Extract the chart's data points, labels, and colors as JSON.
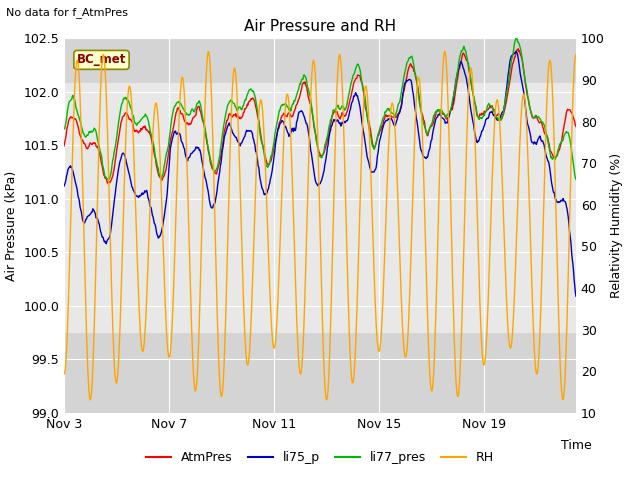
{
  "title": "Air Pressure and RH",
  "top_left_text": "No data for f_AtmPres",
  "xlabel": "Time",
  "ylabel_left": "Air Pressure (kPa)",
  "ylabel_right": "Relativity Humidity (%)",
  "bc_met_label": "BC_met",
  "ylim_left": [
    99.0,
    102.5
  ],
  "ylim_right": [
    10,
    100
  ],
  "yticks_left": [
    99.0,
    99.5,
    100.0,
    100.5,
    101.0,
    101.5,
    102.0,
    102.5
  ],
  "yticks_right": [
    10,
    20,
    30,
    40,
    50,
    60,
    70,
    80,
    90,
    100
  ],
  "xtick_positions": [
    0,
    4,
    8,
    12,
    16
  ],
  "xtick_labels": [
    "Nov 3",
    "Nov 7",
    "Nov 11",
    "Nov 15",
    "Nov 19"
  ],
  "xlim": [
    0,
    19.5
  ],
  "legend_entries": [
    "AtmPres",
    "li75_p",
    "li77_pres",
    "RH"
  ],
  "legend_colors": [
    "#ff0000",
    "#0000cc",
    "#00bb00",
    "#ffa500"
  ],
  "bg_color": "#ffffff",
  "plot_bg_light": "#d8d8d8",
  "plot_bg_dark": "#c8c8c8",
  "band_light": "#e8e8e8",
  "grid_color": "#ffffff",
  "colors": {
    "AtmPres": "#ff0000",
    "li75_p": "#0000cc",
    "li77_pres": "#00bb00",
    "RH": "#ffa500"
  },
  "linewidth": 1.0,
  "seed": 42
}
